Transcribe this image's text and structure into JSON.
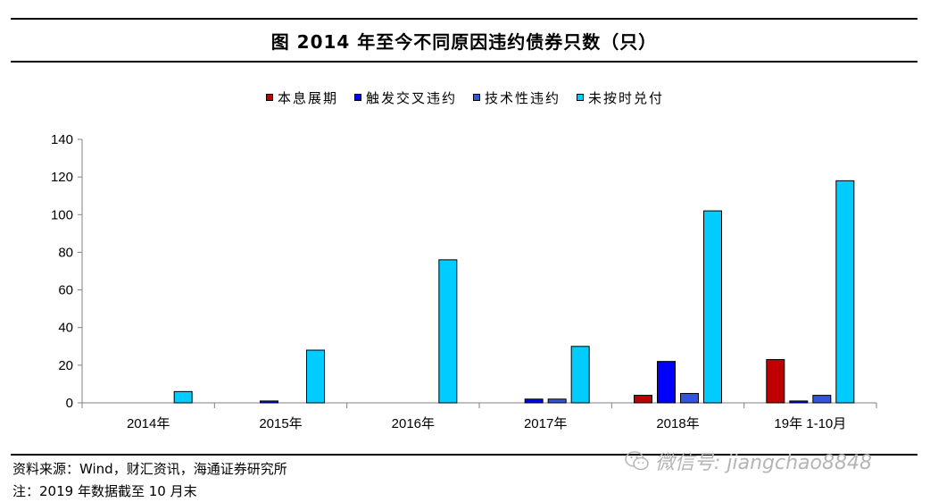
{
  "page": {
    "title": "图 2014 年至今不同原因违约债券只数（只）",
    "source": "资料来源：Wind，财汇资讯，海通证券研究所",
    "note": "注：2019 年数据截至 10 月末",
    "watermark": "微信号: jiangchao8848",
    "watermark_icon": "wechat-icon"
  },
  "chart_data": {
    "type": "bar",
    "title": "图 2014 年至今不同原因违约债券只数（只）",
    "xlabel": "",
    "ylabel": "",
    "categories": [
      "2014年",
      "2015年",
      "2016年",
      "2017年",
      "2018年",
      "19年 1-10月"
    ],
    "ylim": [
      0,
      140
    ],
    "yticks": [
      0,
      20,
      40,
      60,
      80,
      100,
      120,
      140
    ],
    "grid": false,
    "legend_position": "top-center",
    "series": [
      {
        "name": "本息展期",
        "color": "#c00000",
        "values": [
          0,
          0,
          0,
          0,
          4,
          23
        ]
      },
      {
        "name": "触发交叉违约",
        "color": "#0000ff",
        "values": [
          0,
          1,
          0,
          2,
          22,
          1
        ]
      },
      {
        "name": "技术性违约",
        "color": "#3355dd",
        "values": [
          0,
          0,
          0,
          2,
          5,
          4
        ]
      },
      {
        "name": "未按时兑付",
        "color": "#00ccff",
        "values": [
          6,
          28,
          76,
          30,
          102,
          118
        ]
      }
    ]
  }
}
